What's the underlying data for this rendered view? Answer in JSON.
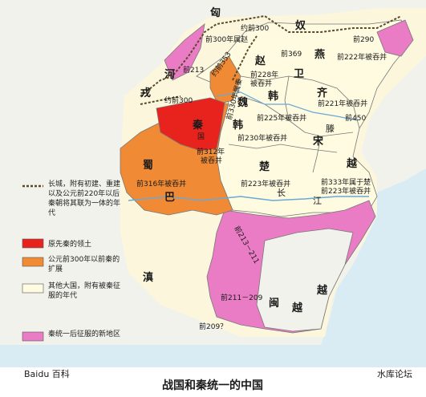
{
  "title": "战国和秦统一的中国",
  "watermark": "Baidu 百科",
  "brand": "水库论坛",
  "colors": {
    "sea": "#d9ebf3",
    "land": "#fbf6dc",
    "steppe": "#f2f2ec",
    "qin_original": "#e8231d",
    "qin_expansion": "#f08a35",
    "other_states": "#fffbe0",
    "new_territory": "#ea7cc6",
    "great_wall": "#5a4a2a",
    "border": "#6a6a6a",
    "river": "#6aa8d6"
  },
  "regions": {
    "xiongnu": "匈",
    "nu": "奴",
    "rong": "戎",
    "dian": "滇",
    "yue": "越",
    "minyue": "闽",
    "yue2": "越",
    "he": "河",
    "qin": "秦",
    "qin_small": "国",
    "shu": "蜀",
    "ba": "巴",
    "zhao": "赵",
    "yan": "燕",
    "wei_guard": "卫",
    "qi": "齐",
    "wei": "魏",
    "han": "韩",
    "han2": "韩",
    "song": "宋",
    "teng": "滕",
    "chu": "楚",
    "yue_state": "越",
    "chang": "长",
    "jiang": "江"
  },
  "annotations": {
    "a1": "约前300",
    "a2": "前300年属赵",
    "a3": "前290",
    "a4": "前222年被吞并",
    "a5": "前213",
    "a6": "约前353",
    "a7": "约前300",
    "a8": "前330年属秦",
    "a9": "前369",
    "a10": "前228年",
    "a10b": "被吞并",
    "a11": "前221年被吞并",
    "a12": "前225年被吞并",
    "a13": "前230年被吞并",
    "a14": "前450",
    "a15": "前312年",
    "a15b": "被吞并",
    "a16": "前316年被吞并",
    "a17": "前223年被吞并",
    "a18": "前333年属于楚",
    "a19": "前223年被吞并",
    "a20": "前213－211",
    "a21": "前211－209",
    "a22": "前209？"
  },
  "legend": {
    "wall": "长城，附有初建、重建以及公元前220年以后秦朝将其联为一体的年代",
    "qin_original": "原先秦的领土",
    "qin_expansion": "公元前300年以前秦的扩展",
    "other_states": "其他大国，附有被秦征服的年代",
    "new_territory": "秦统一后征服的新地区"
  }
}
